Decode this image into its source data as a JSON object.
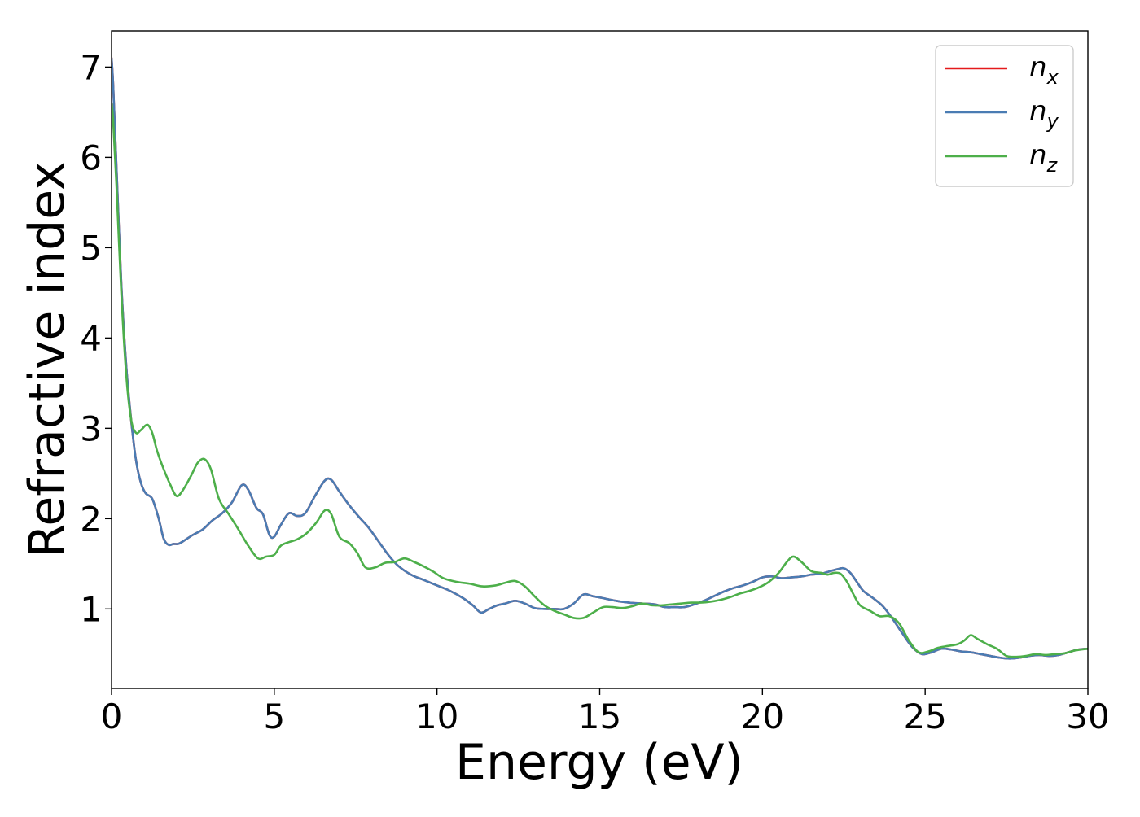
{
  "chart_data": {
    "type": "line",
    "xlabel": "Energy (eV)",
    "ylabel": "Refractive index",
    "xlim": [
      0,
      30
    ],
    "ylim": [
      0.12,
      7.4
    ],
    "xticks": [
      0,
      5,
      10,
      15,
      20,
      25,
      30
    ],
    "yticks": [
      1,
      2,
      3,
      4,
      5,
      6,
      7
    ],
    "grid": false,
    "legend_position": "top-right",
    "series": [
      {
        "name": "n_x",
        "label_main": "n",
        "label_sub": "x",
        "color": "#e41a1c",
        "x": [
          0,
          0.05,
          0.15,
          0.3,
          0.45,
          0.6,
          0.75,
          0.9,
          1.05,
          1.25,
          1.45,
          1.6,
          1.75,
          1.9,
          2.05,
          2.2,
          2.5,
          2.8,
          3.1,
          3.4,
          3.7,
          4.0,
          4.2,
          4.45,
          4.65,
          4.85,
          5.0,
          5.2,
          5.45,
          5.7,
          5.95,
          6.25,
          6.55,
          6.75,
          7.0,
          7.3,
          7.6,
          7.9,
          8.2,
          8.5,
          8.8,
          9.2,
          9.6,
          10.0,
          10.4,
          10.8,
          11.1,
          11.35,
          11.6,
          11.85,
          12.1,
          12.4,
          12.7,
          13.0,
          13.3,
          13.6,
          13.9,
          14.2,
          14.5,
          14.8,
          15.1,
          15.5,
          15.9,
          16.3,
          16.7,
          17.0,
          17.3,
          17.6,
          17.9,
          18.2,
          18.5,
          18.8,
          19.1,
          19.4,
          19.7,
          20.0,
          20.3,
          20.6,
          20.9,
          21.2,
          21.5,
          21.8,
          22.1,
          22.3,
          22.5,
          22.7,
          22.9,
          23.1,
          23.4,
          23.7,
          24.0,
          24.3,
          24.6,
          24.9,
          25.2,
          25.5,
          25.8,
          26.1,
          26.4,
          26.7,
          27.0,
          27.3,
          27.6,
          27.9,
          28.2,
          28.5,
          28.8,
          29.1,
          29.4,
          29.7,
          30.0
        ],
        "y": [
          7.1,
          6.8,
          5.9,
          4.6,
          3.7,
          3.1,
          2.65,
          2.4,
          2.28,
          2.22,
          2.0,
          1.78,
          1.71,
          1.72,
          1.72,
          1.75,
          1.82,
          1.88,
          1.98,
          2.06,
          2.18,
          2.37,
          2.32,
          2.12,
          2.05,
          1.82,
          1.8,
          1.93,
          2.06,
          2.03,
          2.06,
          2.25,
          2.42,
          2.43,
          2.3,
          2.15,
          2.02,
          1.9,
          1.75,
          1.6,
          1.48,
          1.38,
          1.32,
          1.26,
          1.2,
          1.12,
          1.04,
          0.96,
          1.0,
          1.04,
          1.06,
          1.09,
          1.06,
          1.01,
          1.0,
          1.0,
          1.0,
          1.06,
          1.16,
          1.14,
          1.12,
          1.09,
          1.07,
          1.06,
          1.05,
          1.02,
          1.02,
          1.02,
          1.05,
          1.09,
          1.14,
          1.19,
          1.23,
          1.26,
          1.3,
          1.35,
          1.36,
          1.34,
          1.35,
          1.36,
          1.38,
          1.39,
          1.42,
          1.44,
          1.45,
          1.4,
          1.3,
          1.2,
          1.12,
          1.03,
          0.89,
          0.73,
          0.58,
          0.5,
          0.52,
          0.56,
          0.55,
          0.53,
          0.52,
          0.5,
          0.48,
          0.46,
          0.45,
          0.46,
          0.48,
          0.49,
          0.48,
          0.49,
          0.52,
          0.55,
          0.56
        ]
      },
      {
        "name": "n_y",
        "label_main": "n",
        "label_sub": "y",
        "color": "#4a7cb3",
        "x": [
          0,
          0.05,
          0.15,
          0.3,
          0.45,
          0.6,
          0.75,
          0.9,
          1.05,
          1.25,
          1.45,
          1.6,
          1.75,
          1.9,
          2.05,
          2.2,
          2.5,
          2.8,
          3.1,
          3.4,
          3.7,
          4.0,
          4.2,
          4.45,
          4.65,
          4.85,
          5.0,
          5.2,
          5.45,
          5.7,
          5.95,
          6.25,
          6.55,
          6.75,
          7.0,
          7.3,
          7.6,
          7.9,
          8.2,
          8.5,
          8.8,
          9.2,
          9.6,
          10.0,
          10.4,
          10.8,
          11.1,
          11.35,
          11.6,
          11.85,
          12.1,
          12.4,
          12.7,
          13.0,
          13.3,
          13.6,
          13.9,
          14.2,
          14.5,
          14.8,
          15.1,
          15.5,
          15.9,
          16.3,
          16.7,
          17.0,
          17.3,
          17.6,
          17.9,
          18.2,
          18.5,
          18.8,
          19.1,
          19.4,
          19.7,
          20.0,
          20.3,
          20.6,
          20.9,
          21.2,
          21.5,
          21.8,
          22.1,
          22.3,
          22.5,
          22.7,
          22.9,
          23.1,
          23.4,
          23.7,
          24.0,
          24.3,
          24.6,
          24.9,
          25.2,
          25.5,
          25.8,
          26.1,
          26.4,
          26.7,
          27.0,
          27.3,
          27.6,
          27.9,
          28.2,
          28.5,
          28.8,
          29.1,
          29.4,
          29.7,
          30.0
        ],
        "y": [
          7.1,
          6.8,
          5.9,
          4.6,
          3.7,
          3.1,
          2.65,
          2.4,
          2.28,
          2.22,
          2.0,
          1.78,
          1.71,
          1.72,
          1.72,
          1.75,
          1.82,
          1.88,
          1.98,
          2.06,
          2.18,
          2.37,
          2.32,
          2.12,
          2.05,
          1.82,
          1.8,
          1.93,
          2.06,
          2.03,
          2.06,
          2.25,
          2.42,
          2.43,
          2.3,
          2.15,
          2.02,
          1.9,
          1.75,
          1.6,
          1.48,
          1.38,
          1.32,
          1.26,
          1.2,
          1.12,
          1.04,
          0.96,
          1.0,
          1.04,
          1.06,
          1.09,
          1.06,
          1.01,
          1.0,
          1.0,
          1.0,
          1.06,
          1.16,
          1.14,
          1.12,
          1.09,
          1.07,
          1.06,
          1.05,
          1.02,
          1.02,
          1.02,
          1.05,
          1.09,
          1.14,
          1.19,
          1.23,
          1.26,
          1.3,
          1.35,
          1.36,
          1.34,
          1.35,
          1.36,
          1.38,
          1.39,
          1.42,
          1.44,
          1.45,
          1.4,
          1.3,
          1.2,
          1.12,
          1.03,
          0.89,
          0.73,
          0.58,
          0.5,
          0.52,
          0.56,
          0.55,
          0.53,
          0.52,
          0.5,
          0.48,
          0.46,
          0.45,
          0.46,
          0.48,
          0.49,
          0.48,
          0.49,
          0.52,
          0.55,
          0.56
        ]
      },
      {
        "name": "n_z",
        "label_main": "n",
        "label_sub": "z",
        "color": "#4daf4a",
        "x": [
          0,
          0.05,
          0.15,
          0.3,
          0.45,
          0.6,
          0.75,
          0.9,
          1.1,
          1.25,
          1.4,
          1.6,
          1.8,
          2.0,
          2.2,
          2.45,
          2.65,
          2.85,
          3.05,
          3.3,
          3.6,
          3.9,
          4.2,
          4.5,
          4.75,
          5.0,
          5.2,
          5.45,
          5.7,
          6.0,
          6.3,
          6.55,
          6.75,
          7.0,
          7.3,
          7.55,
          7.8,
          8.1,
          8.4,
          8.7,
          9.0,
          9.3,
          9.6,
          9.9,
          10.2,
          10.6,
          11.0,
          11.4,
          11.8,
          12.1,
          12.4,
          12.7,
          13.0,
          13.3,
          13.6,
          13.9,
          14.2,
          14.5,
          14.8,
          15.1,
          15.4,
          15.7,
          16.0,
          16.3,
          16.6,
          16.9,
          17.2,
          17.5,
          17.8,
          18.1,
          18.4,
          18.7,
          19.0,
          19.3,
          19.6,
          19.9,
          20.2,
          20.5,
          20.75,
          20.95,
          21.2,
          21.5,
          21.8,
          22.0,
          22.2,
          22.4,
          22.6,
          22.8,
          23.0,
          23.3,
          23.6,
          23.9,
          24.2,
          24.5,
          24.8,
          25.1,
          25.4,
          25.7,
          26.0,
          26.2,
          26.4,
          26.6,
          26.9,
          27.2,
          27.5,
          27.8,
          28.1,
          28.4,
          28.7,
          29.0,
          29.3,
          29.6,
          30.0
        ],
        "y": [
          6.6,
          6.4,
          5.7,
          4.5,
          3.6,
          3.1,
          2.95,
          2.98,
          3.04,
          2.95,
          2.75,
          2.55,
          2.38,
          2.25,
          2.32,
          2.48,
          2.62,
          2.66,
          2.55,
          2.22,
          2.05,
          1.88,
          1.7,
          1.56,
          1.58,
          1.6,
          1.7,
          1.74,
          1.77,
          1.84,
          1.96,
          2.09,
          2.05,
          1.8,
          1.73,
          1.62,
          1.46,
          1.46,
          1.51,
          1.52,
          1.56,
          1.52,
          1.47,
          1.41,
          1.34,
          1.3,
          1.28,
          1.25,
          1.26,
          1.29,
          1.31,
          1.25,
          1.14,
          1.04,
          0.98,
          0.94,
          0.9,
          0.9,
          0.96,
          1.02,
          1.02,
          1.01,
          1.03,
          1.06,
          1.04,
          1.04,
          1.05,
          1.06,
          1.07,
          1.07,
          1.08,
          1.1,
          1.13,
          1.17,
          1.2,
          1.24,
          1.3,
          1.4,
          1.52,
          1.58,
          1.52,
          1.42,
          1.4,
          1.38,
          1.4,
          1.39,
          1.3,
          1.16,
          1.04,
          0.98,
          0.92,
          0.92,
          0.84,
          0.65,
          0.52,
          0.53,
          0.57,
          0.59,
          0.61,
          0.65,
          0.71,
          0.67,
          0.61,
          0.56,
          0.48,
          0.47,
          0.48,
          0.5,
          0.49,
          0.5,
          0.51,
          0.54,
          0.56
        ]
      }
    ]
  }
}
